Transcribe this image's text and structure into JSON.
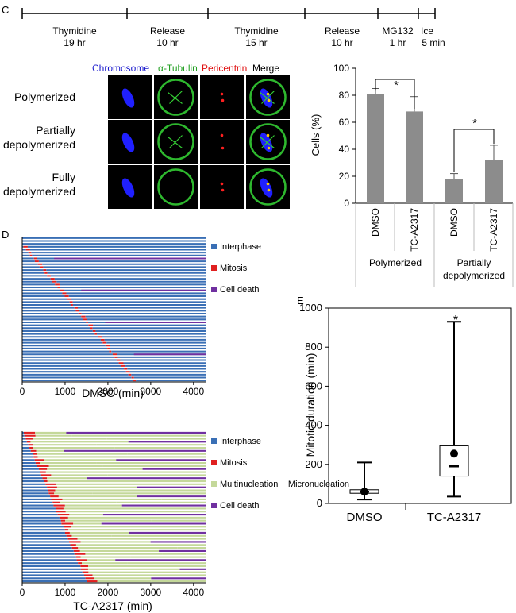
{
  "panel_labels": {
    "c": "C",
    "d": "D",
    "e": "E"
  },
  "timeline": {
    "segments": [
      {
        "label": "Thymidine",
        "duration": "19 hr"
      },
      {
        "label": "Release",
        "duration": "10 hr"
      },
      {
        "label": "Thymidine",
        "duration": "15 hr"
      },
      {
        "label": "Release",
        "duration": "10 hr"
      },
      {
        "label": "MG132",
        "duration": "1 hr"
      },
      {
        "label": "Ice",
        "duration": "5 min"
      }
    ]
  },
  "micrograph": {
    "channels": [
      {
        "label": "Chromosome",
        "color": "#1a1acd"
      },
      {
        "label": "α-Tubulin",
        "color": "#22a022"
      },
      {
        "label": "Pericentrin",
        "color": "#e01010"
      },
      {
        "label": "Merge",
        "color": "#000000"
      }
    ],
    "rows": [
      {
        "line1": "Polymerized",
        "line2": ""
      },
      {
        "line1": "Partially",
        "line2": "depolymerized"
      },
      {
        "line1": "Fully",
        "line2": "depolymerized"
      }
    ]
  },
  "colors": {
    "bar": "#8c8c8c",
    "interphase": "#3a6fb5",
    "mitosis": "#e02020",
    "death": "#7030a0",
    "multi": "#c4d89a"
  },
  "chart_data": [
    {
      "type": "bar",
      "ylabel": "Cells  (%)",
      "ylim": [
        0,
        100
      ],
      "yticks": [
        "0",
        "20",
        "40",
        "60",
        "80",
        "100"
      ],
      "categories": [
        "DMSO",
        "TC-A2317",
        "DMSO",
        "TC-A2317"
      ],
      "groups": [
        "Polymerized",
        "Partially\ndepolymerized"
      ],
      "values": [
        81,
        68,
        18,
        32
      ],
      "errors": [
        4,
        11,
        4,
        11
      ],
      "significance": "*"
    },
    {
      "type": "event-timeline",
      "xlabel": "DMSO (min)",
      "xlim": [
        0,
        4300
      ],
      "xticks": [
        "0",
        "1000",
        "2000",
        "3000",
        "4000"
      ],
      "legend": [
        "Interphase",
        "Mitosis",
        "Cell death"
      ],
      "cells": 50
    },
    {
      "type": "event-timeline",
      "xlabel": "TC-A2317  (min)",
      "xlim": [
        0,
        4300
      ],
      "xticks": [
        "0",
        "1000",
        "2000",
        "3000",
        "4000"
      ],
      "legend": [
        "Interphase",
        "Mitosis",
        "Multinucleation + Micronucleation",
        "Cell death"
      ],
      "cells": 50
    },
    {
      "type": "box",
      "ylabel": "Mitotic duration (min)",
      "ylim": [
        0,
        1000
      ],
      "yticks": [
        "0",
        "200",
        "400",
        "600",
        "800",
        "1000"
      ],
      "categories": [
        "DMSO",
        "TC-A2317"
      ],
      "boxes": [
        {
          "min": 20,
          "q1": 52,
          "median": 60,
          "q3": 70,
          "max": 210,
          "mean": 60
        },
        {
          "min": 35,
          "q1": 140,
          "median": 190,
          "q3": 295,
          "max": 930,
          "mean": 255
        }
      ],
      "significance": "*"
    }
  ]
}
